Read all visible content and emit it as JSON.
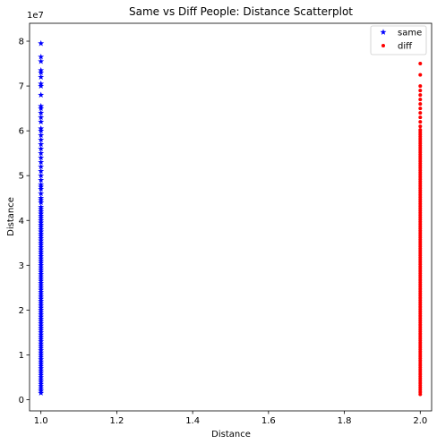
{
  "chart_data": {
    "type": "scatter",
    "title": "Same vs Diff People: Distance Scatterplot",
    "xlabel": "Distance",
    "ylabel": "Distance",
    "y_offset_label": "1e7",
    "xlim": [
      0.97,
      2.03
    ],
    "ylim": [
      -2500000,
      84000000
    ],
    "x_ticks": [
      {
        "value": 1.0,
        "label": "1.0"
      },
      {
        "value": 1.2,
        "label": "1.2"
      },
      {
        "value": 1.4,
        "label": "1.4"
      },
      {
        "value": 1.6,
        "label": "1.6"
      },
      {
        "value": 1.8,
        "label": "1.8"
      },
      {
        "value": 2.0,
        "label": "2.0"
      }
    ],
    "y_ticks": [
      {
        "value": 0,
        "label": "0"
      },
      {
        "value": 10000000,
        "label": "1"
      },
      {
        "value": 20000000,
        "label": "2"
      },
      {
        "value": 30000000,
        "label": "3"
      },
      {
        "value": 40000000,
        "label": "4"
      },
      {
        "value": 50000000,
        "label": "5"
      },
      {
        "value": 60000000,
        "label": "6"
      },
      {
        "value": 70000000,
        "label": "7"
      },
      {
        "value": 80000000,
        "label": "8"
      }
    ],
    "legend_position": "top-right",
    "grid": false,
    "series": [
      {
        "name": "same",
        "marker": "star",
        "color": "#0000ff",
        "x": 1.0,
        "y": [
          1500000,
          2000000,
          2500000,
          3000000,
          3500000,
          4000000,
          4500000,
          5000000,
          5500000,
          6000000,
          6500000,
          7000000,
          7500000,
          8000000,
          8500000,
          9000000,
          9500000,
          10000000,
          10500000,
          11000000,
          11500000,
          12000000,
          12500000,
          13000000,
          13500000,
          14000000,
          14500000,
          15000000,
          15500000,
          16000000,
          16500000,
          17000000,
          17500000,
          18000000,
          18500000,
          19000000,
          19500000,
          20000000,
          20500000,
          21000000,
          21500000,
          22000000,
          22500000,
          23000000,
          23500000,
          24000000,
          24500000,
          25000000,
          25500000,
          26000000,
          26500000,
          27000000,
          27500000,
          28000000,
          28500000,
          29000000,
          29500000,
          30000000,
          30500000,
          31000000,
          31500000,
          32000000,
          32500000,
          33000000,
          33500000,
          34000000,
          34500000,
          35000000,
          35500000,
          36000000,
          36500000,
          37000000,
          37500000,
          38000000,
          38500000,
          39000000,
          39500000,
          40000000,
          40500000,
          41000000,
          41500000,
          42000000,
          42500000,
          43000000,
          44000000,
          44500000,
          45000000,
          46000000,
          47000000,
          47500000,
          48000000,
          49000000,
          50000000,
          51000000,
          52000000,
          53000000,
          54000000,
          55000000,
          56000000,
          57000000,
          58000000,
          59000000,
          60000000,
          60500000,
          62000000,
          63000000,
          64000000,
          65000000,
          65500000,
          68000000,
          70000000,
          70500000,
          72000000,
          73000000,
          73500000,
          75500000,
          76500000,
          79500000
        ]
      },
      {
        "name": "diff",
        "marker": "dot",
        "color": "#ff0000",
        "x": 2.0,
        "y": [
          1200000,
          1700000,
          2200000,
          2700000,
          3200000,
          3700000,
          4200000,
          4700000,
          5200000,
          5700000,
          6200000,
          6700000,
          7200000,
          7700000,
          8200000,
          8700000,
          9200000,
          9700000,
          10200000,
          10700000,
          11200000,
          11700000,
          12200000,
          12700000,
          13200000,
          13700000,
          14200000,
          14700000,
          15200000,
          15700000,
          16200000,
          16700000,
          17200000,
          17700000,
          18200000,
          18700000,
          19200000,
          19700000,
          20200000,
          20700000,
          21200000,
          21700000,
          22200000,
          22700000,
          23200000,
          23700000,
          24200000,
          24700000,
          25200000,
          25700000,
          26200000,
          26700000,
          27200000,
          27700000,
          28200000,
          28700000,
          29200000,
          29700000,
          30200000,
          30700000,
          31200000,
          31700000,
          32200000,
          32700000,
          33200000,
          33700000,
          34200000,
          34700000,
          35200000,
          35700000,
          36200000,
          36700000,
          37200000,
          37700000,
          38200000,
          38700000,
          39200000,
          39700000,
          40200000,
          40700000,
          41200000,
          41700000,
          42200000,
          42700000,
          43200000,
          43700000,
          44200000,
          44700000,
          45200000,
          45700000,
          46200000,
          46700000,
          47200000,
          47700000,
          48200000,
          48700000,
          49200000,
          49700000,
          50200000,
          50700000,
          51200000,
          51700000,
          52200000,
          52700000,
          53200000,
          53700000,
          54200000,
          54700000,
          55200000,
          55700000,
          56200000,
          56700000,
          57200000,
          57700000,
          58200000,
          58700000,
          59200000,
          59700000,
          60200000,
          61000000,
          62000000,
          63000000,
          64000000,
          65000000,
          66000000,
          67000000,
          68000000,
          69000000,
          70000000,
          72500000,
          75000000
        ]
      }
    ]
  }
}
